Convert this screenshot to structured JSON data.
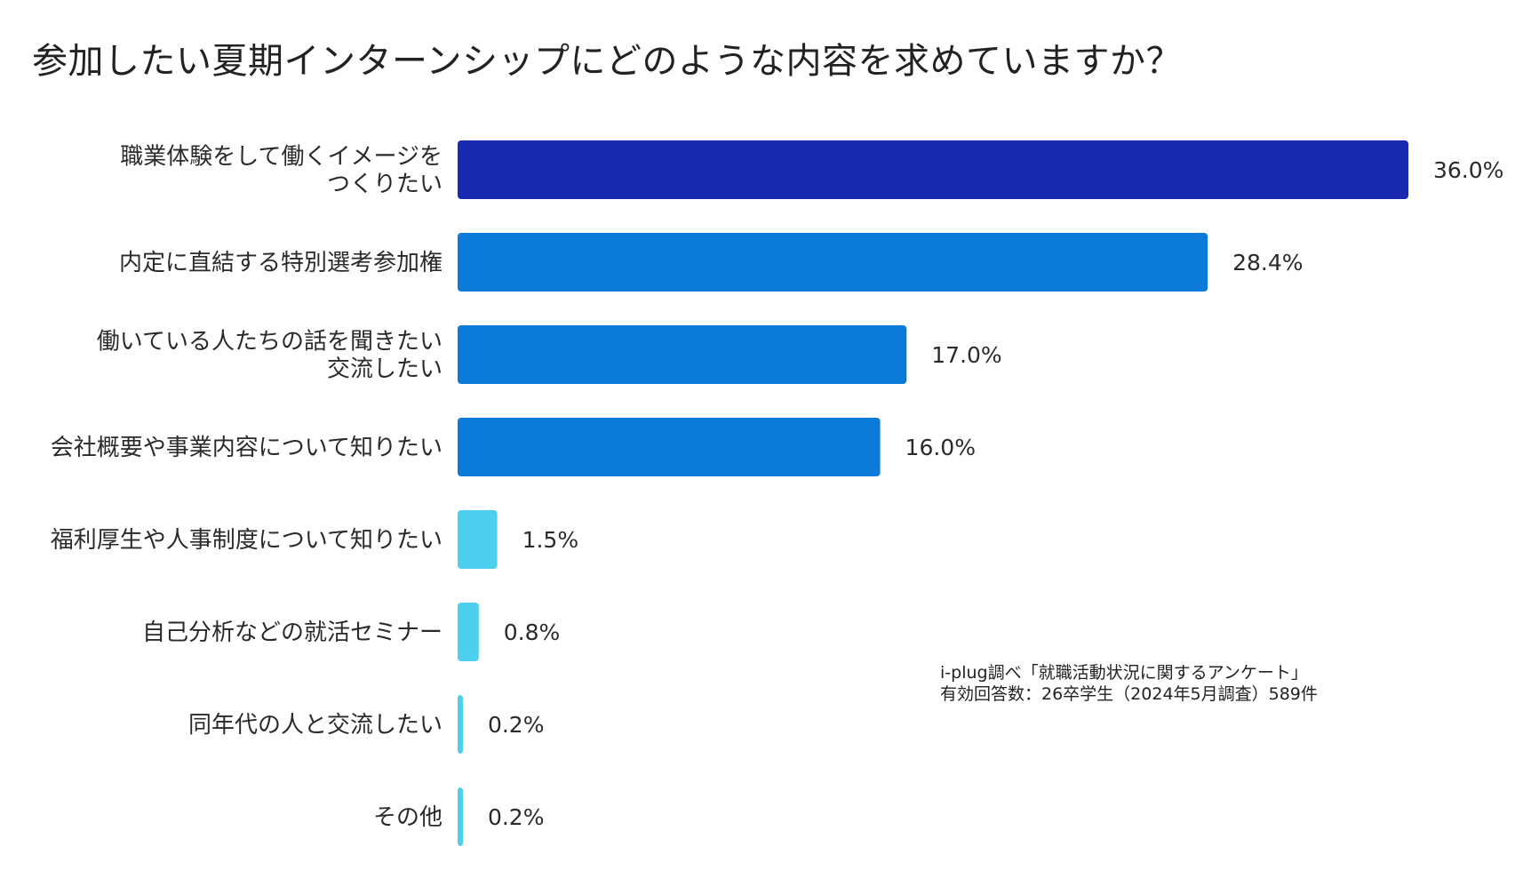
{
  "title": "参加したい夏期インターンシップにどのような内容を求めていますか？",
  "source_note": {
    "line1": "i-plug調べ「就職活動状況に関するアンケート」",
    "line2": "有効回答数：26卒学生（2024年5月調査）589件"
  },
  "chart_data": {
    "type": "bar",
    "orientation": "horizontal",
    "title": "参加したい夏期インターンシップにどのような内容を求めていますか？",
    "xlabel": "",
    "ylabel": "",
    "unit": "%",
    "xlim": [
      0,
      36
    ],
    "grid": false,
    "categories": [
      [
        "職業体験をして働くイメージを",
        "つくりたい"
      ],
      [
        "内定に直結する特別選考参加権"
      ],
      [
        "働いている人たちの話を聞きたい",
        "交流したい"
      ],
      [
        "会社概要や事業内容について知りたい"
      ],
      [
        "福利厚生や人事制度について知りたい"
      ],
      [
        "自己分析などの就活セミナー"
      ],
      [
        "同年代の人と交流したい"
      ],
      [
        "その他"
      ]
    ],
    "values": [
      36.0,
      28.4,
      17.0,
      16.0,
      1.5,
      0.8,
      0.2,
      0.2
    ],
    "value_labels": [
      "36.0%",
      "28.4%",
      "17.0%",
      "16.0%",
      "1.5%",
      "0.8%",
      "0.2%",
      "0.2%"
    ],
    "colors": [
      "#1a2ab0",
      "#0b7ad8",
      "#0b7ad8",
      "#0b7ad8",
      "#4cd0ee",
      "#4cd0ee",
      "#4cd0ee",
      "#4cd0ee"
    ]
  }
}
